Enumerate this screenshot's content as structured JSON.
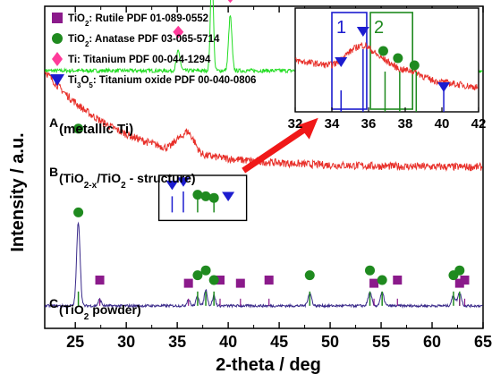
{
  "chart_data": {
    "type": "line",
    "xlabel": "2-theta / deg",
    "ylabel": "Intensity / a.u.",
    "xlim": [
      22,
      65
    ],
    "xticks": [
      25,
      30,
      35,
      40,
      45,
      50,
      55,
      60,
      65
    ],
    "y_ticks_labeled": false,
    "grid": false,
    "legend": {
      "placement": "top-left",
      "entries": [
        {
          "marker": "square",
          "color": "#8b1a8b",
          "text_main": "TiO",
          "text_sub": "2",
          "text_rest": ": Rutile PDF 01-089-0552"
        },
        {
          "marker": "circle",
          "color": "#1f8a1f",
          "text_main": "TiO",
          "text_sub": "2",
          "text_rest": ": Anatase PDF 03-065-5714"
        },
        {
          "marker": "diamond",
          "color": "#ff3a9a",
          "text_main": "Ti: Titanium PDF 00-044-1294",
          "text_sub": "",
          "text_rest": ""
        },
        {
          "marker": "triangle",
          "color": "#1c1ccf",
          "text_main": "Ti",
          "text_sub": "3",
          "text_mid": "O",
          "text_sub2": "5",
          "text_rest": ": Titanium oxide PDF 00-040-0806"
        }
      ]
    },
    "series": [
      {
        "color": "#22dd22",
        "label_letter": "A",
        "label_text": "(metallic Ti)",
        "baseline": 0.8,
        "peaks": [
          [
            35.1,
            0.06,
            0.18
          ],
          [
            38.4,
            0.32,
            0.14
          ],
          [
            40.2,
            0.17,
            0.16
          ],
          [
            53.0,
            0.02,
            0.25
          ],
          [
            62.9,
            0.02,
            0.25
          ]
        ]
      },
      {
        "color": "#e8302a",
        "label_letter": "B",
        "label_text_main": "(TiO",
        "label_sub1": "2-x",
        "label_mid": "/TiO",
        "label_sub2": "2",
        "label_rest": " - structure)",
        "baseline": 0.5,
        "decay": 0.3,
        "peaks": [
          [
            35.0,
            0.03,
            0.4
          ],
          [
            35.9,
            0.055,
            0.4
          ],
          [
            36.6,
            0.03,
            0.4
          ]
        ]
      },
      {
        "color": "#3a2a8a",
        "label_letter": "C",
        "label_text_main": "(TiO",
        "label_sub": "2",
        "label_rest": " powder)",
        "baseline": 0.07,
        "peaks": [
          [
            25.3,
            0.26,
            0.17
          ],
          [
            27.4,
            0.02,
            0.15
          ],
          [
            36.1,
            0.02,
            0.15
          ],
          [
            37.0,
            0.03,
            0.15
          ],
          [
            37.8,
            0.05,
            0.15
          ],
          [
            38.6,
            0.03,
            0.15
          ],
          [
            48.0,
            0.04,
            0.18
          ],
          [
            53.9,
            0.04,
            0.18
          ],
          [
            55.1,
            0.04,
            0.18
          ],
          [
            62.1,
            0.03,
            0.18
          ],
          [
            62.7,
            0.04,
            0.18
          ]
        ]
      }
    ],
    "reference_markers": {
      "rutile": [
        27.4,
        36.1,
        39.2,
        41.2,
        44.0,
        54.3,
        56.6,
        62.7,
        63.2
      ],
      "anatase": [
        25.3,
        37.0,
        37.8,
        38.6,
        48.0,
        53.9,
        55.1,
        62.1,
        62.7
      ],
      "titanium": [
        35.1,
        38.4,
        40.2,
        53.0,
        62.9
      ],
      "ti3o5_main": [
        34.5,
        35.6,
        40.0
      ],
      "anatase_on_B": [
        25.3,
        37.0,
        37.8,
        38.6
      ]
    },
    "inset": {
      "xlim": [
        32,
        42
      ],
      "xticks": [
        32,
        34,
        36,
        38,
        40,
        42
      ],
      "region_labels": [
        "1",
        "2"
      ],
      "region_1": [
        34.0,
        35.9
      ],
      "region_2": [
        36.1,
        38.4
      ],
      "ti3o5_markers": [
        34.5,
        35.7,
        40.1
      ],
      "anatase_markers": [
        36.9,
        37.7,
        38.6
      ]
    }
  }
}
